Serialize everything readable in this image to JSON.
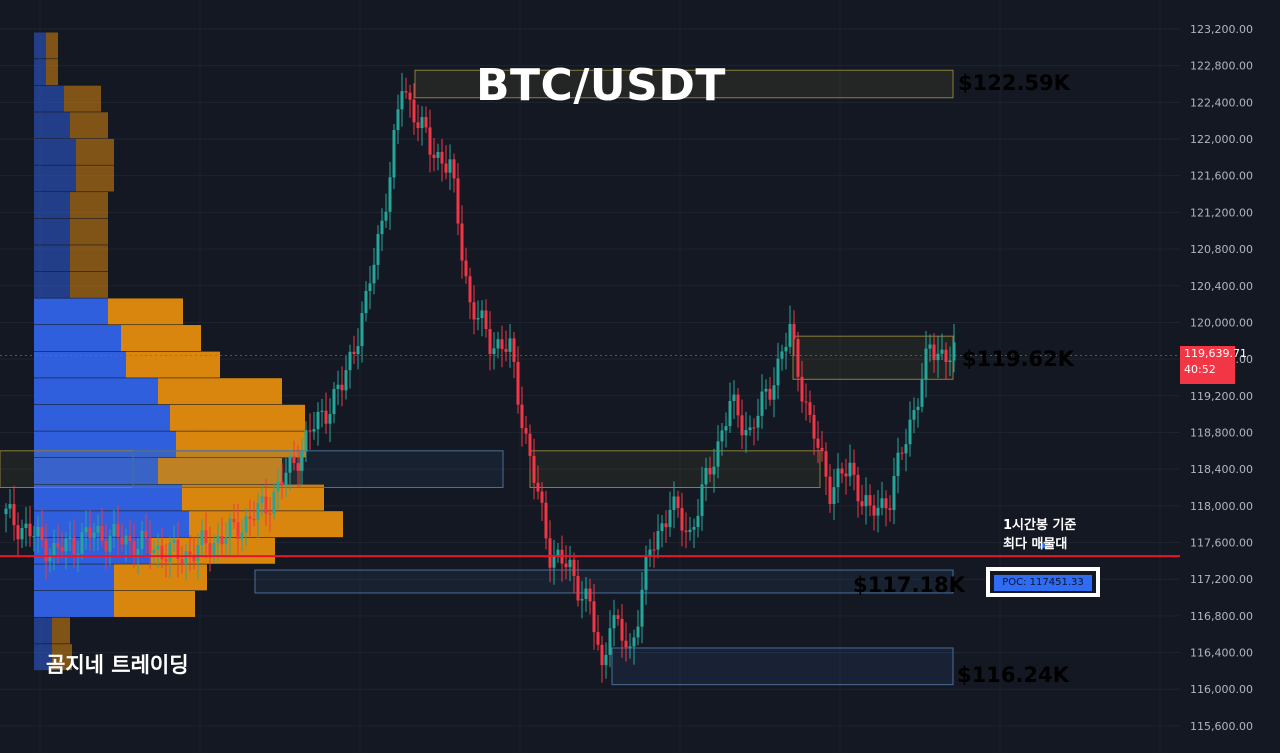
{
  "header": {
    "title": "BTC/USDT"
  },
  "watermark": {
    "brand": "곰지네 트레이딩"
  },
  "annotation": {
    "line1": "1시간봉 기준",
    "line2": "최다 매물대"
  },
  "poc": {
    "label": "POC: 117451.33",
    "value": 117451.33
  },
  "levels": [
    {
      "label": "$122.59K",
      "color": "#f2a818",
      "zone": [
        122450,
        122750
      ]
    },
    {
      "label": "$119.62K",
      "color": "#2f9be8",
      "zone": [
        119380,
        119850
      ]
    },
    {
      "label": "$117.18K",
      "color": "#2f9be8",
      "zone": [
        117050,
        117300
      ]
    },
    {
      "label": "$116.24K",
      "color": "#2f9be8",
      "zone": [
        116050,
        116450
      ]
    }
  ],
  "current_price": {
    "value": "119,639.71",
    "countdown": "40:52"
  },
  "colors": {
    "up": "#26a69a",
    "down": "#f23645",
    "poc_line": "#e8152a",
    "vp_up": "#2f5fdc",
    "vp_down": "#d9860f",
    "background": "#141822"
  },
  "chart_data": {
    "type": "candlestick",
    "y_axis": {
      "range": [
        115500,
        123400
      ],
      "ticks": [
        123200,
        122800,
        122400,
        122000,
        121600,
        121200,
        120800,
        120400,
        120000,
        119600,
        119200,
        118800,
        118400,
        118000,
        117600,
        117200,
        116800,
        116400,
        116000,
        115600
      ],
      "tick_labels": [
        "123,200.00",
        "122,800.00",
        "122,400.00",
        "122,000.00",
        "121,600.00",
        "121,200.00",
        "120,800.00",
        "120,400.00",
        "120,000.00",
        "119,600.00",
        "119,200.00",
        "118,800.00",
        "118,400.00",
        "118,000.00",
        "117,600.00",
        "117,200.00",
        "116,800.00",
        "116,400.00",
        "116,000.00",
        "115,600.00"
      ]
    },
    "candle_count": 238,
    "anchor_closes": [
      [
        0,
        117900
      ],
      [
        12,
        117500
      ],
      [
        22,
        117700
      ],
      [
        32,
        117600
      ],
      [
        44,
        117450
      ],
      [
        56,
        117700
      ],
      [
        65,
        118000
      ],
      [
        71,
        118400
      ],
      [
        76,
        118800
      ],
      [
        84,
        119300
      ],
      [
        90,
        120200
      ],
      [
        96,
        121600
      ],
      [
        99,
        122600
      ],
      [
        101,
        122400
      ],
      [
        106,
        121900
      ],
      [
        111,
        121700
      ],
      [
        116,
        120200
      ],
      [
        121,
        119800
      ],
      [
        126,
        119700
      ],
      [
        131,
        118500
      ],
      [
        136,
        117500
      ],
      [
        141,
        117300
      ],
      [
        146,
        116900
      ],
      [
        149,
        116200
      ],
      [
        151,
        116800
      ],
      [
        156,
        116400
      ],
      [
        161,
        117500
      ],
      [
        166,
        118000
      ],
      [
        171,
        117700
      ],
      [
        176,
        118400
      ],
      [
        181,
        119100
      ],
      [
        186,
        118800
      ],
      [
        191,
        119300
      ],
      [
        196,
        119900
      ],
      [
        201,
        118900
      ],
      [
        206,
        118200
      ],
      [
        211,
        118400
      ],
      [
        216,
        117900
      ],
      [
        221,
        118100
      ],
      [
        226,
        118900
      ],
      [
        231,
        119700
      ],
      [
        237,
        119640
      ]
    ],
    "volume_profile": {
      "bins": [
        {
          "price": 123020,
          "up": 12,
          "down": 12
        },
        {
          "price": 122730,
          "up": 12,
          "down": 12
        },
        {
          "price": 122440,
          "up": 30,
          "down": 37
        },
        {
          "price": 122150,
          "up": 36,
          "down": 38
        },
        {
          "price": 121860,
          "up": 42,
          "down": 38
        },
        {
          "price": 121570,
          "up": 42,
          "down": 38
        },
        {
          "price": 121280,
          "up": 36,
          "down": 38
        },
        {
          "price": 120990,
          "up": 36,
          "down": 38
        },
        {
          "price": 120700,
          "up": 36,
          "down": 38
        },
        {
          "price": 120410,
          "up": 36,
          "down": 38
        },
        {
          "price": 120120,
          "up": 74,
          "down": 75
        },
        {
          "price": 119830,
          "up": 87,
          "down": 80
        },
        {
          "price": 119540,
          "up": 92,
          "down": 94
        },
        {
          "price": 119250,
          "up": 124,
          "down": 124
        },
        {
          "price": 118960,
          "up": 136,
          "down": 135
        },
        {
          "price": 118670,
          "up": 142,
          "down": 130
        },
        {
          "price": 118380,
          "up": 124,
          "down": 124
        },
        {
          "price": 118090,
          "up": 148,
          "down": 142
        },
        {
          "price": 117800,
          "up": 155,
          "down": 154
        },
        {
          "price": 117510,
          "up": 117,
          "down": 124
        },
        {
          "price": 117220,
          "up": 80,
          "down": 93
        },
        {
          "price": 116930,
          "up": 80,
          "down": 81
        },
        {
          "price": 116640,
          "up": 18,
          "down": 18
        },
        {
          "price": 116350,
          "up": 18,
          "down": 20
        }
      ]
    }
  }
}
